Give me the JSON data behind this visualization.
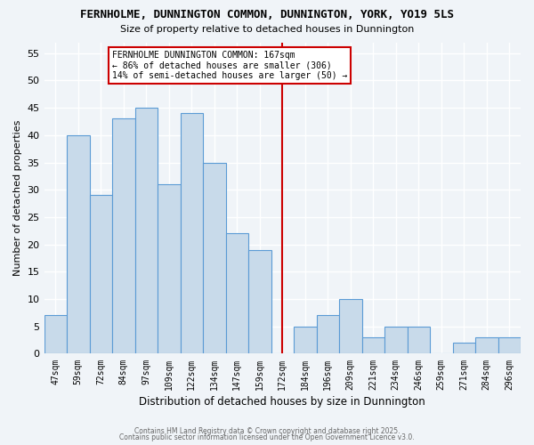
{
  "title": "FERNHOLME, DUNNINGTON COMMON, DUNNINGTON, YORK, YO19 5LS",
  "subtitle": "Size of property relative to detached houses in Dunnington",
  "xlabel": "Distribution of detached houses by size in Dunnington",
  "ylabel": "Number of detached properties",
  "bin_labels": [
    "47sqm",
    "59sqm",
    "72sqm",
    "84sqm",
    "97sqm",
    "109sqm",
    "122sqm",
    "134sqm",
    "147sqm",
    "159sqm",
    "172sqm",
    "184sqm",
    "196sqm",
    "209sqm",
    "221sqm",
    "234sqm",
    "246sqm",
    "259sqm",
    "271sqm",
    "284sqm",
    "296sqm"
  ],
  "bar_heights": [
    7,
    40,
    29,
    43,
    45,
    31,
    44,
    35,
    22,
    19,
    0,
    5,
    7,
    10,
    3,
    5,
    5,
    0,
    2,
    3,
    3
  ],
  "bar_color": "#c8daea",
  "bar_edgecolor": "#5b9bd5",
  "background_color": "#f0f4f8",
  "plot_bg_color": "#f0f4f8",
  "grid_color": "#ffffff",
  "ylim": [
    0,
    57
  ],
  "yticks": [
    0,
    5,
    10,
    15,
    20,
    25,
    30,
    35,
    40,
    45,
    50,
    55
  ],
  "vline_x_index": 10,
  "annotation_text": "FERNHOLME DUNNINGTON COMMON: 167sqm\n← 86% of detached houses are smaller (306)\n14% of semi-detached houses are larger (50) →",
  "annotation_box_color": "#ffffff",
  "annotation_box_edgecolor": "#cc0000",
  "footnote1": "Contains HM Land Registry data © Crown copyright and database right 2025.",
  "footnote2": "Contains public sector information licensed under the Open Government Licence v3.0."
}
